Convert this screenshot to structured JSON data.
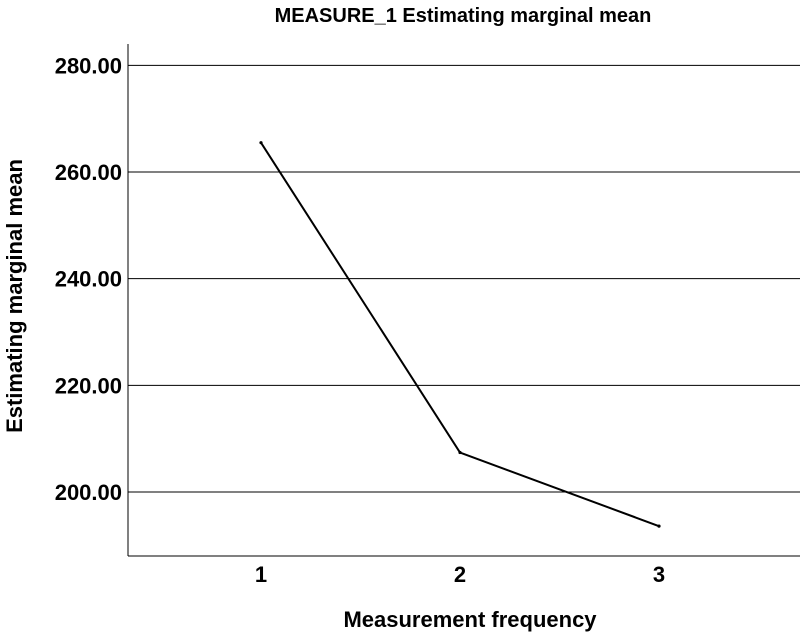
{
  "chart_data": {
    "type": "line",
    "title": "MEASURE_1 Estimating marginal mean",
    "xlabel": "Measurement frequency",
    "ylabel": "Estimating marginal mean",
    "categories": [
      "1",
      "2",
      "3"
    ],
    "series": [
      {
        "values": [
          265.5,
          207.4,
          193.6
        ]
      }
    ],
    "ylim": [
      188,
      284
    ],
    "yticks": [
      200,
      220,
      240,
      260,
      280
    ],
    "ytick_labels": [
      "200.00",
      "220.00",
      "240.00",
      "260.00",
      "280.00"
    ],
    "grid": "horizontal",
    "legend": "none",
    "line_color": "#000000"
  }
}
